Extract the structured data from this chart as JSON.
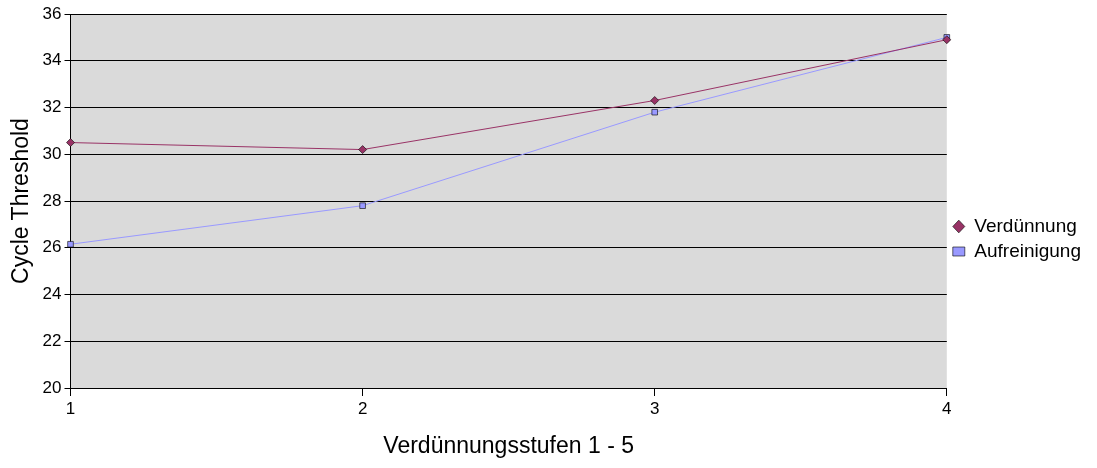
{
  "chart_data": {
    "type": "line",
    "xlabel": "Verdünnungsstufen 1 - 5",
    "ylabel": "Cycle Threshold",
    "categories": [
      "1",
      "2",
      "3",
      "4"
    ],
    "series": [
      {
        "name": "Aufreinigung",
        "color": "#9999ff",
        "marker": "square",
        "values": [
          26.15,
          27.8,
          31.8,
          35.0
        ]
      },
      {
        "name": "Verdünnung",
        "color": "#993366",
        "marker": "diamond",
        "values": [
          30.5,
          30.2,
          32.3,
          34.9
        ]
      }
    ],
    "ylim": [
      20,
      36
    ],
    "yticks": [
      20,
      22,
      24,
      26,
      28,
      30,
      32,
      34,
      36
    ],
    "grid": "y",
    "legend": "right",
    "line_style": "solid"
  }
}
